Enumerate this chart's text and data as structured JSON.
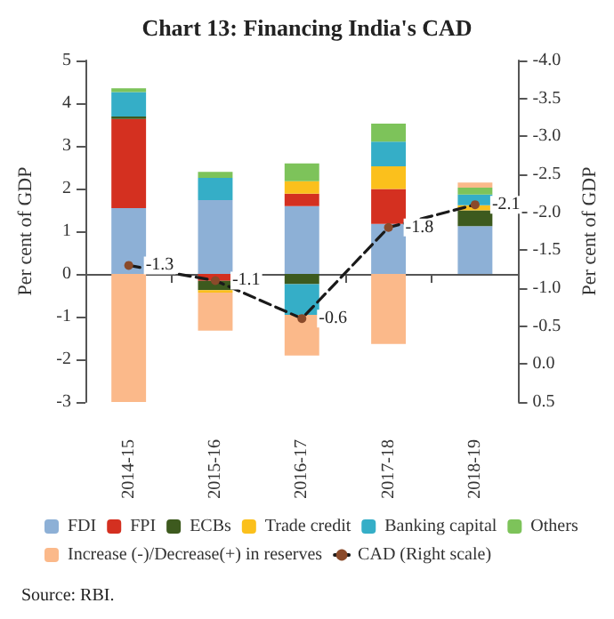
{
  "chart_data": {
    "type": "bar",
    "title": "Chart 13: Financing India's CAD",
    "ylabel": "Per cent of GDP",
    "y2label": "Per cent of GDP",
    "categories": [
      "2014-15",
      "2015-16",
      "2016-17",
      "2017-18",
      "2018-19"
    ],
    "stacked": true,
    "series": [
      {
        "name": "FDI",
        "color": "#8db0d6",
        "values": [
          1.54,
          1.73,
          1.59,
          1.17,
          1.12
        ]
      },
      {
        "name": "FPI",
        "color": "#d43020",
        "values": [
          2.09,
          -0.16,
          0.29,
          0.82,
          null
        ]
      },
      {
        "name": "ECBs",
        "color": "#3d5a1e",
        "values": [
          0.06,
          -0.22,
          -0.24,
          null,
          0.37
        ]
      },
      {
        "name": "Trade credit",
        "color": "#fbc01c",
        "values": [
          null,
          -0.06,
          0.29,
          0.53,
          0.12
        ]
      },
      {
        "name": "Banking capital",
        "color": "#35aec7",
        "values": [
          0.57,
          0.52,
          -0.72,
          0.58,
          0.25
        ]
      },
      {
        "name": "Others",
        "color": "#7dc35a",
        "values": [
          0.09,
          0.14,
          0.42,
          0.42,
          0.16
        ]
      },
      {
        "name": "Increase (-)/Decrease(+) in reserves",
        "color": "#fbb98a",
        "values": [
          -3.0,
          -0.89,
          -0.95,
          -1.64,
          0.12
        ]
      },
      {
        "name": "CAD (Right scale)",
        "type": "line",
        "axis": "y2",
        "color": "#1a1a1a",
        "line_style": "dashed",
        "marker": "circle",
        "data_labels": true,
        "values": [
          -1.3,
          -1.1,
          -0.6,
          -1.8,
          -2.1
        ]
      }
    ],
    "ylim": [
      -3,
      5
    ],
    "yticks": [
      -3,
      -2,
      -1,
      0,
      1,
      2,
      3,
      4,
      5
    ],
    "y2lim": [
      0.5,
      -4
    ],
    "y2ticks": [
      {
        "value": 0.5,
        "label": "0.5"
      },
      {
        "value": 0,
        "label": "0.0"
      },
      {
        "value": -0.5,
        "label": "-0.5"
      },
      {
        "value": -1,
        "label": "-1.0"
      },
      {
        "value": -1.5,
        "label": "-1.5"
      },
      {
        "value": -2,
        "label": "-2.0"
      },
      {
        "value": -2.5,
        "label": "-2.5"
      },
      {
        "value": -3,
        "label": "-3.0"
      },
      {
        "value": -3.5,
        "label": "-3.5"
      },
      {
        "value": -4,
        "label": "-4.0"
      }
    ],
    "legend": "bottom",
    "annotations": [
      "Source: RBI."
    ]
  }
}
